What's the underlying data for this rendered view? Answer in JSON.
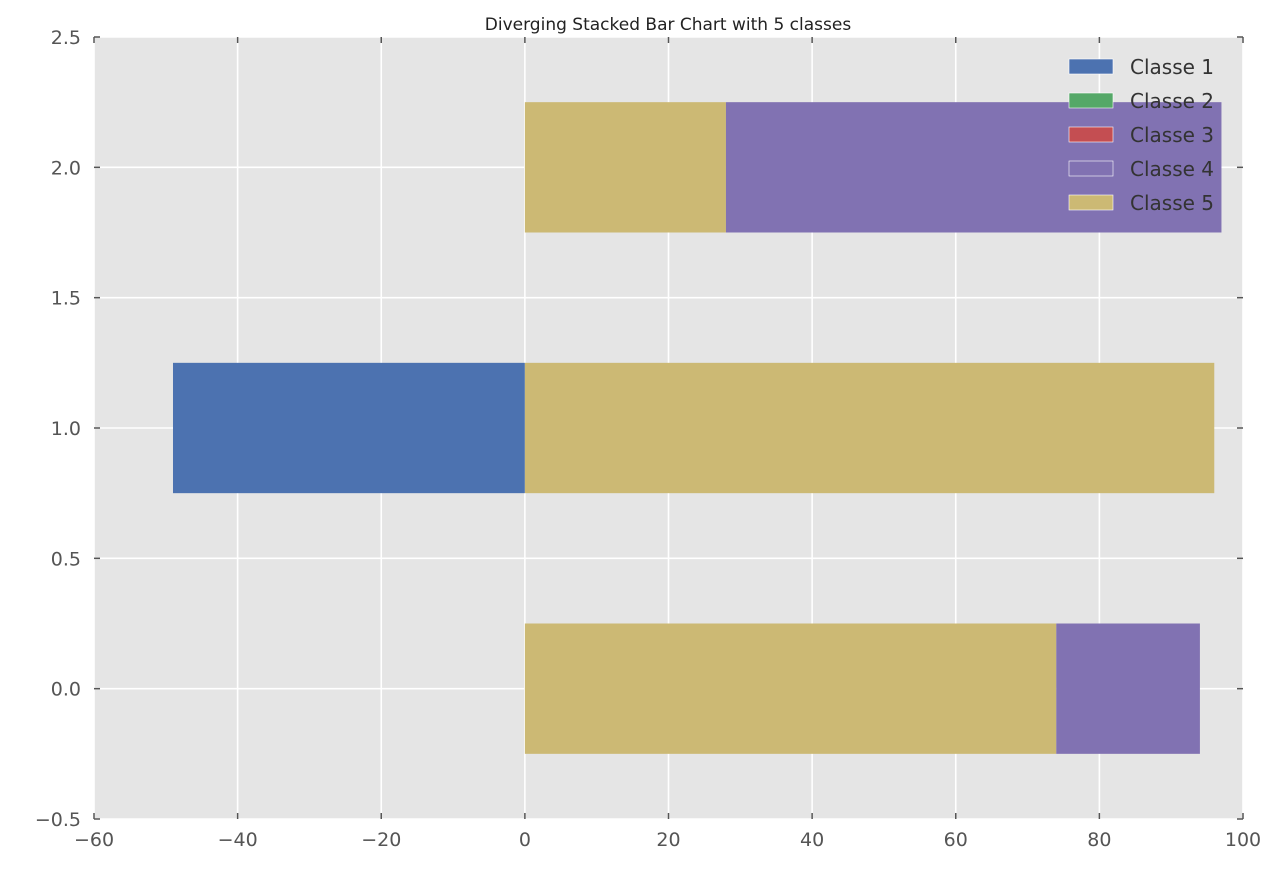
{
  "chart_data": {
    "type": "bar",
    "orientation": "horizontal",
    "stacked": true,
    "diverging": true,
    "title": "Diverging Stacked Bar Chart with 5 classes",
    "xlabel": "",
    "ylabel": "",
    "xlim": [
      -60,
      100
    ],
    "ylim": [
      -0.5,
      2.5
    ],
    "xticks": [
      -60,
      -40,
      -20,
      0,
      20,
      40,
      60,
      80,
      100
    ],
    "xtick_labels": [
      "−60",
      "−40",
      "−20",
      "0",
      "20",
      "40",
      "60",
      "80",
      "100"
    ],
    "yticks": [
      -0.5,
      0.0,
      0.5,
      1.0,
      1.5,
      2.0,
      2.5
    ],
    "ytick_labels": [
      "−0.5",
      "0.0",
      "0.5",
      "1.0",
      "1.5",
      "2.0",
      "2.5"
    ],
    "grid": true,
    "legend_position": "top-right",
    "categories": [
      0,
      1,
      2
    ],
    "bar_height": 0.5,
    "series": [
      {
        "name": "Classe 1",
        "color": "#4c72b0",
        "values": [
          0,
          -49,
          0
        ]
      },
      {
        "name": "Classe 2",
        "color": "#55a868",
        "values": [
          0,
          0,
          0
        ]
      },
      {
        "name": "Classe 3",
        "color": "#c44e52",
        "values": [
          0,
          0,
          0
        ]
      },
      {
        "name": "Classe 4",
        "color": "#8172b2",
        "values": [
          20,
          0,
          69
        ]
      },
      {
        "name": "Classe 5",
        "color": "#ccb974",
        "values": [
          74,
          96,
          28
        ]
      }
    ],
    "positive_stack_order": [
      "Classe 5",
      "Classe 4"
    ],
    "background_color": "#e5e5e5",
    "grid_color": "#ffffff"
  }
}
